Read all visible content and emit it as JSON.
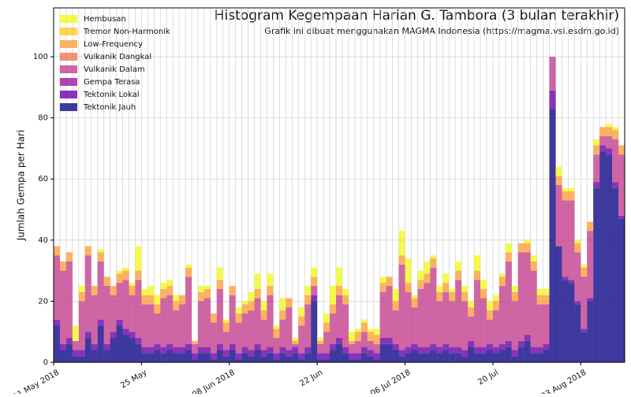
{
  "chart_data": {
    "type": "stacked_bar",
    "title": "Histogram Kegempaan Harian G. Tambora (3 bulan terakhir)",
    "subtitle": "Grafik ini dibuat menggunakan MAGMA Indonesia (https://magma.vsi.esdm.go.id)",
    "y_label": "Jumlah Gempa per Hari",
    "legend": "upper left",
    "grid": true,
    "ylim": [
      0,
      116
    ],
    "yticks": [
      0,
      20,
      40,
      60,
      80,
      100
    ],
    "categories": [
      "11 May 2018",
      null,
      null,
      null,
      null,
      null,
      null,
      null,
      null,
      null,
      null,
      null,
      null,
      null,
      "25 May",
      null,
      null,
      null,
      null,
      null,
      null,
      null,
      null,
      null,
      null,
      null,
      null,
      null,
      "08 Jun 2018",
      null,
      null,
      null,
      null,
      null,
      null,
      null,
      null,
      null,
      null,
      null,
      null,
      null,
      "22 Jun",
      null,
      null,
      null,
      null,
      null,
      null,
      null,
      null,
      null,
      null,
      null,
      null,
      null,
      "06 Jul 2018",
      null,
      null,
      null,
      null,
      null,
      null,
      null,
      null,
      null,
      null,
      null,
      null,
      null,
      "20 Jul",
      null,
      null,
      null,
      null,
      null,
      null,
      null,
      null,
      null,
      null,
      null,
      null,
      null,
      "03 Aug 2018",
      null,
      null,
      null,
      null,
      null,
      null
    ],
    "series": [
      {
        "name": "Hembusan",
        "color": "#f0f921",
        "values": [
          0,
          0,
          0,
          5,
          2,
          0,
          0,
          1,
          0,
          0,
          1,
          1,
          1,
          8,
          2,
          3,
          3,
          2,
          2,
          2,
          0,
          1,
          0,
          2,
          1,
          0,
          4,
          1,
          0,
          2,
          1,
          3,
          5,
          3,
          4,
          1,
          4,
          0,
          1,
          3,
          3,
          3,
          1,
          3,
          6,
          6,
          2,
          3,
          1,
          1,
          1,
          2,
          2,
          0,
          4,
          8,
          8,
          1,
          3,
          4,
          1,
          2,
          3,
          1,
          3,
          2,
          2,
          5,
          3,
          3,
          2,
          1,
          3,
          2,
          0,
          1,
          2,
          2,
          2,
          0,
          3,
          1,
          1,
          1,
          1,
          0,
          2,
          0,
          1,
          1,
          0
        ]
      },
      {
        "name": "Tremor Non-Harmonik",
        "color": "#fdca26",
        "values": [
          0,
          0,
          0,
          0,
          0,
          0,
          0,
          0,
          0,
          0,
          0,
          0,
          0,
          0,
          0,
          0,
          0,
          0,
          0,
          0,
          0,
          0,
          0,
          0,
          0,
          0,
          0,
          0,
          0,
          0,
          0,
          0,
          0,
          0,
          0,
          0,
          0,
          0,
          0,
          0,
          0,
          0,
          0,
          0,
          0,
          0,
          0,
          0,
          0,
          0,
          0,
          0,
          0,
          0,
          0,
          0,
          0,
          0,
          0,
          0,
          0,
          0,
          0,
          0,
          0,
          0,
          0,
          0,
          0,
          0,
          0,
          0,
          0,
          0,
          0,
          0,
          0,
          0,
          0,
          0,
          0,
          0,
          0,
          0,
          0,
          0,
          0,
          0,
          0,
          0,
          0
        ]
      },
      {
        "name": "Low-Frequency",
        "color": "#fb9f3a",
        "values": [
          3,
          3,
          3,
          0,
          3,
          3,
          3,
          3,
          3,
          3,
          3,
          3,
          3,
          3,
          3,
          3,
          3,
          3,
          3,
          3,
          3,
          3,
          1,
          3,
          3,
          3,
          3,
          3,
          3,
          3,
          3,
          3,
          3,
          3,
          3,
          3,
          3,
          3,
          1,
          3,
          3,
          3,
          1,
          3,
          3,
          3,
          3,
          1,
          3,
          3,
          3,
          3,
          3,
          3,
          3,
          3,
          3,
          3,
          3,
          3,
          3,
          3,
          3,
          3,
          3,
          3,
          3,
          3,
          3,
          3,
          3,
          3,
          3,
          3,
          3,
          3,
          3,
          3,
          3,
          0,
          3,
          3,
          3,
          3,
          3,
          3,
          3,
          3,
          3,
          3,
          3
        ]
      },
      {
        "name": "Vulkanik Dangkal",
        "color": "#ed7953",
        "values": [
          0,
          0,
          0,
          0,
          0,
          0,
          0,
          0,
          0,
          0,
          0,
          0,
          0,
          0,
          0,
          0,
          0,
          0,
          0,
          0,
          0,
          0,
          0,
          0,
          0,
          0,
          0,
          0,
          0,
          0,
          0,
          0,
          0,
          0,
          0,
          0,
          0,
          0,
          0,
          0,
          0,
          0,
          0,
          0,
          0,
          0,
          0,
          0,
          0,
          0,
          0,
          0,
          0,
          0,
          0,
          0,
          0,
          0,
          0,
          0,
          0,
          0,
          0,
          0,
          0,
          0,
          0,
          0,
          0,
          0,
          0,
          0,
          0,
          0,
          0,
          0,
          0,
          0,
          0,
          0,
          0,
          0,
          0,
          0,
          0,
          0,
          0,
          0,
          0,
          0,
          0
        ]
      },
      {
        "name": "Vulkanik Dalam",
        "color": "#c43f8e",
        "values": [
          21,
          24,
          25,
          3,
          16,
          25,
          16,
          19,
          19,
          12,
          12,
          16,
          12,
          19,
          14,
          14,
          10,
          16,
          16,
          12,
          14,
          22,
          3,
          15,
          16,
          10,
          18,
          6,
          16,
          10,
          11,
          13,
          15,
          10,
          17,
          5,
          9,
          14,
          1,
          9,
          14,
          3,
          3,
          7,
          10,
          14,
          14,
          3,
          4,
          5,
          3,
          3,
          15,
          17,
          11,
          28,
          18,
          12,
          19,
          21,
          25,
          15,
          17,
          15,
          22,
          16,
          8,
          22,
          16,
          8,
          12,
          19,
          26,
          16,
          29,
          27,
          25,
          14,
          13,
          11,
          20,
          25,
          26,
          16,
          17,
          22,
          9,
          3,
          4,
          14,
          20
        ]
      },
      {
        "name": "Gempa Terasa",
        "color": "#9c179e",
        "values": [
          0,
          0,
          0,
          0,
          0,
          0,
          0,
          0,
          0,
          0,
          0,
          0,
          0,
          0,
          0,
          0,
          0,
          0,
          0,
          0,
          0,
          0,
          0,
          0,
          0,
          0,
          0,
          0,
          0,
          0,
          0,
          0,
          0,
          0,
          0,
          0,
          0,
          0,
          0,
          0,
          0,
          0,
          0,
          0,
          0,
          0,
          0,
          0,
          0,
          0,
          0,
          0,
          0,
          0,
          0,
          0,
          0,
          0,
          0,
          0,
          0,
          0,
          0,
          0,
          0,
          0,
          0,
          0,
          0,
          0,
          0,
          0,
          0,
          0,
          0,
          0,
          0,
          0,
          0,
          0,
          0,
          0,
          0,
          0,
          0,
          0,
          0,
          0,
          0,
          0,
          0
        ]
      },
      {
        "name": "Tektonik Lokal",
        "color": "#6a00a8",
        "values": [
          2,
          2,
          2,
          2,
          2,
          2,
          2,
          2,
          2,
          2,
          2,
          2,
          2,
          2,
          2,
          2,
          2,
          2,
          2,
          2,
          2,
          2,
          2,
          2,
          2,
          2,
          2,
          2,
          2,
          2,
          2,
          2,
          2,
          2,
          2,
          2,
          2,
          2,
          2,
          2,
          2,
          2,
          2,
          2,
          2,
          2,
          2,
          2,
          2,
          2,
          2,
          2,
          2,
          2,
          2,
          2,
          2,
          2,
          2,
          2,
          2,
          2,
          2,
          2,
          2,
          2,
          2,
          2,
          2,
          2,
          2,
          2,
          2,
          2,
          2,
          2,
          2,
          2,
          2,
          6,
          0,
          1,
          1,
          1,
          1,
          1,
          2,
          2,
          2,
          2,
          1
        ]
      },
      {
        "name": "Tektonik Jauh",
        "color": "#0d0887",
        "values": [
          12,
          4,
          6,
          2,
          2,
          8,
          4,
          12,
          4,
          8,
          12,
          9,
          8,
          6,
          3,
          3,
          4,
          3,
          4,
          3,
          3,
          4,
          1,
          3,
          3,
          1,
          4,
          2,
          4,
          1,
          3,
          2,
          4,
          2,
          3,
          1,
          3,
          2,
          3,
          1,
          3,
          20,
          1,
          1,
          4,
          6,
          3,
          1,
          1,
          3,
          2,
          1,
          6,
          6,
          4,
          2,
          3,
          4,
          3,
          3,
          4,
          3,
          4,
          3,
          3,
          2,
          5,
          3,
          3,
          4,
          3,
          4,
          5,
          2,
          5,
          7,
          3,
          3,
          4,
          83,
          38,
          27,
          26,
          19,
          10,
          20,
          57,
          69,
          68,
          57,
          47
        ]
      }
    ]
  }
}
